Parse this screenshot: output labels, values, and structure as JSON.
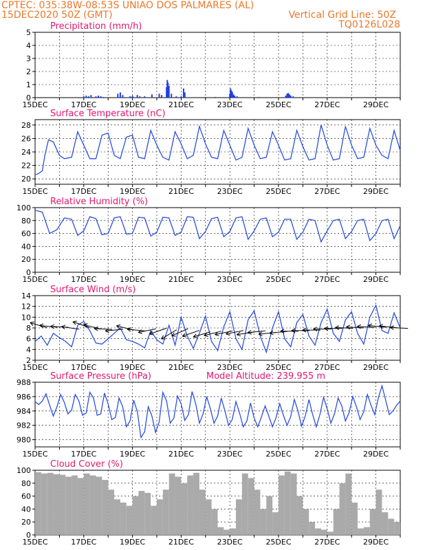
{
  "header": {
    "left_line1": "CPTEC:   035:38W-08:53S   UNIAO DOS PALMARES (AL)",
    "left_line2": "15DEC2020 50Z (GMT)",
    "right_line1": "Vertical Grid Line: 50Z",
    "right_line2": "TQ0126L028"
  },
  "colors": {
    "header": "#e8792a",
    "title": "#e0186e",
    "line": "#2b4fe0",
    "bar": "#1f3fe6",
    "cloud": "#aaaaaa",
    "wind_arrow": "#000000"
  },
  "x_axis": {
    "labels": [
      "15DEC",
      "17DEC",
      "19DEC",
      "21DEC",
      "23DEC",
      "25DEC",
      "27DEC",
      "29DEC"
    ],
    "label_days": [
      0,
      2,
      4,
      6,
      8,
      10,
      12,
      14
    ],
    "range_days": [
      0,
      15
    ]
  },
  "chart_data": [
    {
      "id": "precip",
      "type": "bar",
      "title": "Precipitation (mm/h)",
      "ylim": [
        0,
        5
      ],
      "yticks": [
        0,
        1,
        2,
        3,
        4,
        5
      ],
      "x": [
        2.0,
        2.1,
        2.2,
        2.3,
        2.5,
        2.6,
        2.7,
        2.8,
        3.4,
        3.5,
        3.6,
        3.9,
        4.0,
        4.2,
        4.3,
        4.5,
        4.8,
        5.1,
        5.2,
        5.4,
        5.43,
        5.46,
        5.5,
        5.6,
        5.8,
        6.0,
        6.1,
        6.15,
        7.0,
        7.4,
        8.0,
        8.03,
        8.06,
        8.1,
        8.15,
        8.2,
        8.3,
        9.2,
        10.3,
        10.35,
        10.4,
        10.45,
        10.5,
        10.6
      ],
      "y": [
        0.1,
        0.15,
        0.1,
        0.2,
        0.1,
        0.15,
        0.1,
        0.05,
        0.3,
        0.4,
        0.2,
        0.1,
        0.15,
        0.2,
        0.1,
        0.1,
        0.25,
        0.3,
        0.2,
        0.8,
        1.35,
        1.15,
        0.9,
        0.3,
        0.1,
        0.1,
        0.7,
        0.4,
        0.05,
        0.05,
        0.3,
        0.7,
        0.55,
        0.45,
        0.25,
        0.15,
        0.1,
        0.05,
        0.15,
        0.3,
        0.35,
        0.25,
        0.15,
        0.1
      ]
    },
    {
      "id": "temp",
      "type": "line",
      "title": "Surface Temperature (nC)",
      "ylim": [
        19.2,
        28.8
      ],
      "yticks": [
        20,
        22,
        24,
        26,
        28
      ],
      "x": [
        0,
        0.15,
        0.3,
        0.4,
        0.55,
        0.75,
        1.0,
        1.2,
        1.5,
        1.75,
        2.0,
        2.25,
        2.5,
        2.75,
        3.0,
        3.25,
        3.5,
        3.75,
        4.0,
        4.25,
        4.5,
        4.75,
        5.0,
        5.25,
        5.5,
        5.75,
        6.0,
        6.25,
        6.5,
        6.75,
        7.0,
        7.25,
        7.5,
        7.75,
        8.0,
        8.25,
        8.5,
        8.75,
        9.0,
        9.25,
        9.5,
        9.75,
        10.0,
        10.25,
        10.5,
        10.75,
        11.0,
        11.25,
        11.5,
        11.75,
        12.0,
        12.25,
        12.5,
        12.75,
        13.0,
        13.25,
        13.5,
        13.75,
        14.0,
        14.25,
        14.5,
        14.75,
        15.0
      ],
      "y": [
        20.6,
        20.8,
        21.2,
        23.5,
        25.8,
        25.5,
        23.5,
        23.0,
        23.2,
        27.0,
        25.0,
        23.0,
        23.0,
        26.5,
        26.8,
        23.5,
        23.0,
        26.2,
        26.5,
        23.2,
        23.0,
        27.2,
        25.0,
        23.2,
        22.8,
        27.0,
        25.2,
        23.0,
        23.5,
        27.8,
        25.2,
        23.2,
        23.0,
        27.2,
        25.0,
        22.8,
        23.2,
        27.5,
        25.0,
        23.0,
        23.2,
        27.0,
        25.0,
        22.8,
        23.0,
        27.2,
        24.8,
        22.8,
        23.0,
        28.0,
        25.0,
        22.8,
        23.0,
        27.8,
        25.0,
        23.0,
        23.2,
        27.5,
        25.0,
        23.5,
        23.0,
        27.2,
        24.2
      ]
    },
    {
      "id": "rh",
      "type": "line",
      "title": "Relative Humidity (%)",
      "ylim": [
        0,
        100
      ],
      "yticks": [
        0,
        20,
        40,
        60,
        80,
        100
      ],
      "x": [
        0,
        0.3,
        0.6,
        0.9,
        1.2,
        1.5,
        1.75,
        2.0,
        2.25,
        2.5,
        2.75,
        3.0,
        3.25,
        3.5,
        3.75,
        4.0,
        4.25,
        4.5,
        4.75,
        5.0,
        5.25,
        5.5,
        5.75,
        6.0,
        6.25,
        6.5,
        6.75,
        7.0,
        7.25,
        7.5,
        7.75,
        8.0,
        8.25,
        8.5,
        8.75,
        9.0,
        9.25,
        9.5,
        9.75,
        10.0,
        10.25,
        10.5,
        10.75,
        11.0,
        11.25,
        11.5,
        11.75,
        12.0,
        12.25,
        12.5,
        12.75,
        13.0,
        13.25,
        13.5,
        13.75,
        14.0,
        14.25,
        14.5,
        14.75,
        15.0
      ],
      "y": [
        96,
        93,
        60,
        66,
        84,
        82,
        57,
        64,
        86,
        83,
        58,
        60,
        84,
        86,
        59,
        60,
        85,
        84,
        56,
        62,
        85,
        84,
        57,
        62,
        86,
        85,
        52,
        63,
        83,
        85,
        55,
        63,
        84,
        86,
        51,
        64,
        82,
        84,
        55,
        62,
        82,
        82,
        51,
        62,
        82,
        80,
        47,
        64,
        80,
        82,
        52,
        63,
        80,
        82,
        49,
        60,
        80,
        82,
        52,
        72
      ]
    },
    {
      "id": "wind",
      "type": "line",
      "title": "Surface Wind (m/s)",
      "ylim": [
        2,
        14
      ],
      "yticks": [
        2,
        4,
        6,
        8,
        10,
        12,
        14
      ],
      "x": [
        0,
        0.25,
        0.5,
        0.75,
        1.0,
        1.25,
        1.5,
        1.75,
        2.0,
        2.25,
        2.5,
        2.75,
        3.0,
        3.25,
        3.5,
        3.75,
        4.0,
        4.25,
        4.5,
        4.75,
        5.0,
        5.25,
        5.5,
        5.75,
        6.0,
        6.25,
        6.5,
        6.75,
        7.0,
        7.25,
        7.5,
        7.75,
        8.0,
        8.25,
        8.5,
        8.75,
        9.0,
        9.25,
        9.5,
        9.75,
        10.0,
        10.25,
        10.5,
        10.75,
        11.0,
        11.25,
        11.5,
        11.75,
        12.0,
        12.25,
        12.5,
        12.75,
        13.0,
        13.25,
        13.5,
        13.75,
        14.0,
        14.25,
        14.5,
        14.75,
        15.0
      ],
      "y": [
        5.5,
        6.5,
        4.8,
        7.0,
        6.2,
        5.5,
        4.5,
        8.5,
        9.2,
        7.5,
        5.2,
        5.0,
        6.0,
        7.0,
        8.0,
        5.8,
        5.5,
        5.0,
        4.3,
        7.5,
        5.8,
        5.0,
        8.5,
        4.8,
        10.0,
        6.5,
        4.2,
        7.0,
        10.2,
        5.5,
        3.8,
        8.2,
        11.0,
        6.0,
        4.0,
        9.5,
        11.2,
        6.5,
        3.5,
        8.0,
        11.0,
        6.0,
        4.5,
        9.0,
        10.5,
        6.5,
        4.8,
        9.0,
        11.5,
        7.0,
        5.5,
        9.5,
        11.0,
        7.0,
        5.0,
        10.0,
        12.2,
        7.5,
        7.0,
        10.8,
        8.0
      ],
      "arrows": {
        "x": [
          0.15,
          0.55,
          1.0,
          1.45,
          1.9,
          2.35,
          2.8,
          3.25,
          3.7,
          4.15,
          4.6,
          5.05,
          5.5,
          5.95,
          6.4,
          6.85,
          7.3,
          7.75,
          8.2,
          8.65,
          9.1,
          9.55,
          10.0,
          10.45,
          10.9,
          11.35,
          11.8,
          12.25,
          12.7,
          13.15,
          13.6,
          14.05,
          14.5,
          14.95
        ],
        "y": [
          8.5,
          8.3,
          8.2,
          8.0,
          8.6,
          8.2,
          7.8,
          7.6,
          8.0,
          7.6,
          7.5,
          7.4,
          6.8,
          7.2,
          7.0,
          6.8,
          7.0,
          7.1,
          7.2,
          7.0,
          7.3,
          7.0,
          7.2,
          7.4,
          7.5,
          7.6,
          7.8,
          7.9,
          8.0,
          8.1,
          8.2,
          8.3,
          8.2,
          8.0
        ],
        "u": [
          -1,
          -1,
          -1,
          -1,
          -1,
          -1,
          -1,
          -1,
          -1,
          -1,
          -1,
          -1,
          -1,
          -1,
          -1,
          -1,
          -1,
          -1,
          -1,
          -1,
          -1,
          -1,
          -1,
          -1,
          -1,
          -1,
          -1,
          -1,
          -1,
          -1,
          -1,
          -1,
          -1,
          -1
        ],
        "v": [
          0.3,
          0.1,
          0.05,
          0.15,
          0.35,
          0.25,
          0.05,
          -0.1,
          0.25,
          0.1,
          -0.2,
          -0.35,
          -0.6,
          -0.45,
          -0.35,
          -0.3,
          -0.25,
          -0.2,
          -0.2,
          -0.15,
          -0.1,
          -0.1,
          -0.1,
          0,
          0,
          0,
          0,
          0,
          0.05,
          0.05,
          0.05,
          0.1,
          0.1,
          0.05
        ]
      }
    },
    {
      "id": "pres",
      "type": "line",
      "title": "Surface Pressure (hPa)",
      "annotation": "Model Altitude: 239.955  m",
      "ylim": [
        979.0,
        988.0
      ],
      "yticks": [
        980,
        982,
        984,
        986,
        988
      ],
      "x": [
        0,
        0.15,
        0.3,
        0.45,
        0.6,
        0.75,
        0.9,
        1.05,
        1.2,
        1.35,
        1.5,
        1.65,
        1.8,
        1.95,
        2.1,
        2.25,
        2.4,
        2.55,
        2.7,
        2.85,
        3.0,
        3.15,
        3.3,
        3.45,
        3.6,
        3.75,
        3.9,
        4.05,
        4.2,
        4.35,
        4.5,
        4.65,
        4.8,
        4.95,
        5.1,
        5.25,
        5.4,
        5.55,
        5.7,
        5.85,
        6.0,
        6.15,
        6.3,
        6.45,
        6.6,
        6.75,
        6.9,
        7.05,
        7.2,
        7.35,
        7.5,
        7.65,
        7.8,
        7.95,
        8.1,
        8.25,
        8.4,
        8.55,
        8.7,
        8.85,
        9.0,
        9.15,
        9.3,
        9.45,
        9.6,
        9.75,
        9.9,
        10.05,
        10.2,
        10.35,
        10.5,
        10.65,
        10.8,
        10.95,
        11.1,
        11.25,
        11.4,
        11.55,
        11.7,
        11.85,
        12.0,
        12.15,
        12.3,
        12.45,
        12.6,
        12.75,
        12.9,
        13.05,
        13.2,
        13.35,
        13.5,
        13.65,
        13.8,
        13.95,
        14.1,
        14.25,
        14.4,
        14.55,
        14.7,
        14.85,
        15.0
      ],
      "y": [
        985.3,
        984.9,
        985.4,
        986.4,
        984.8,
        983.3,
        984.6,
        986.3,
        985.2,
        983.6,
        984.1,
        986.3,
        985.4,
        983.4,
        983.7,
        986.6,
        985.8,
        983.4,
        983.6,
        986.5,
        985.0,
        982.8,
        983.1,
        985.8,
        984.6,
        981.8,
        982.6,
        985.5,
        983.9,
        980.3,
        981.1,
        984.6,
        983.3,
        981.0,
        982.5,
        986.6,
        985.4,
        982.3,
        983.0,
        986.1,
        985.0,
        982.7,
        983.5,
        986.7,
        985.0,
        982.3,
        983.6,
        986.0,
        984.3,
        982.3,
        983.3,
        985.8,
        984.0,
        982.0,
        982.8,
        985.3,
        983.7,
        981.8,
        982.6,
        985.1,
        983.0,
        981.8,
        983.2,
        984.7,
        983.3,
        981.8,
        983.1,
        985.0,
        983.4,
        982.0,
        983.2,
        985.6,
        984.0,
        981.9,
        983.3,
        985.6,
        983.5,
        981.8,
        983.5,
        985.9,
        984.3,
        982.3,
        983.6,
        985.8,
        984.7,
        982.6,
        983.8,
        986.0,
        984.6,
        982.8,
        983.9,
        986.3,
        984.8,
        983.5,
        985.8,
        987.5,
        985.5,
        983.5,
        984.0,
        984.8,
        985.4
      ]
    },
    {
      "id": "cloud",
      "type": "bar",
      "title": "Cloud Cover (%)",
      "ylim": [
        0,
        100
      ],
      "yticks": [
        0,
        20,
        40,
        60,
        80,
        100
      ],
      "x": [
        0,
        0.25,
        0.5,
        0.75,
        1.0,
        1.25,
        1.5,
        1.75,
        2.0,
        2.25,
        2.5,
        2.75,
        3.0,
        3.25,
        3.5,
        3.75,
        4.0,
        4.25,
        4.5,
        4.75,
        5.0,
        5.25,
        5.5,
        5.75,
        6.0,
        6.25,
        6.5,
        6.75,
        7.0,
        7.25,
        7.5,
        7.75,
        8.0,
        8.25,
        8.5,
        8.75,
        9.0,
        9.25,
        9.5,
        9.75,
        10.0,
        10.25,
        10.5,
        10.75,
        11.0,
        11.25,
        11.5,
        11.75,
        12.0,
        12.25,
        12.5,
        12.75,
        13.0,
        13.25,
        13.5,
        13.75,
        14.0,
        14.25,
        14.5,
        14.75
      ],
      "y": [
        97,
        95,
        96,
        94,
        93,
        90,
        92,
        88,
        95,
        92,
        90,
        85,
        70,
        55,
        50,
        45,
        60,
        68,
        65,
        45,
        55,
        70,
        95,
        90,
        80,
        92,
        96,
        70,
        55,
        40,
        12,
        8,
        10,
        55,
        95,
        88,
        70,
        40,
        60,
        35,
        92,
        98,
        95,
        60,
        40,
        20,
        10,
        8,
        5,
        40,
        80,
        95,
        50,
        10,
        12,
        40,
        70,
        35,
        25,
        20
      ]
    }
  ]
}
